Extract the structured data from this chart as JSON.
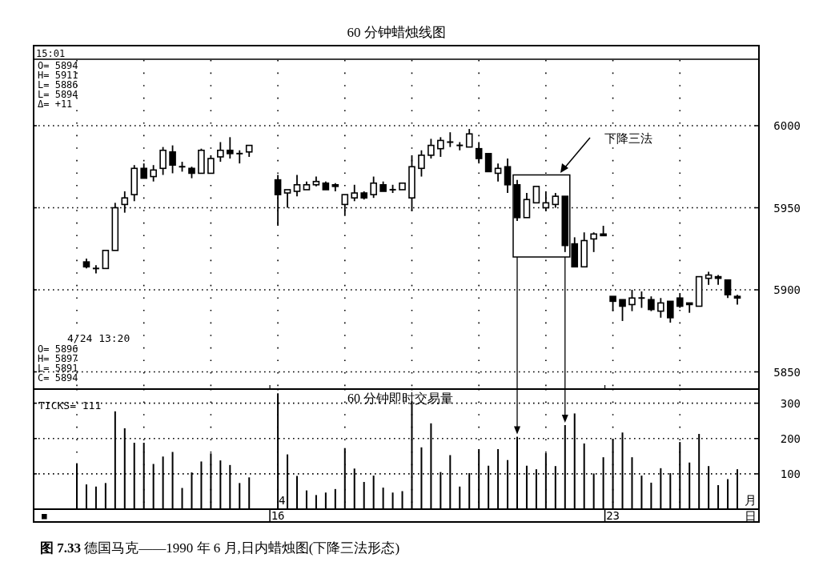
{
  "chart_data": [
    {
      "type": "candlestick",
      "title": "60 分钟蜡烛线图",
      "categories": [
        null,
        null,
        null,
        null,
        null,
        null,
        null,
        null,
        null,
        null,
        null,
        null,
        null,
        null,
        null,
        null,
        null,
        null,
        null,
        null,
        null,
        "16",
        null,
        null,
        null,
        null,
        null,
        null,
        null,
        null,
        null,
        null,
        null,
        null,
        null,
        null,
        null,
        null,
        null,
        null,
        null,
        null,
        null,
        null,
        null,
        null,
        null,
        null,
        null,
        null,
        null,
        null,
        null,
        null,
        null,
        null,
        "23",
        null,
        null,
        null,
        null,
        null,
        null,
        null,
        null,
        null,
        null,
        null,
        null,
        null
      ],
      "ohlc": [
        null,
        [
          5917,
          5919,
          5913,
          5914
        ],
        [
          5913,
          5915,
          5910,
          5913
        ],
        [
          5913,
          5924,
          5913,
          5924
        ],
        [
          5924,
          5953,
          5924,
          5950
        ],
        [
          5952,
          5960,
          5947,
          5956
        ],
        [
          5958,
          5976,
          5954,
          5974
        ],
        [
          5974,
          5977,
          5968,
          5968
        ],
        [
          5969,
          5976,
          5966,
          5973
        ],
        [
          5974,
          5987,
          5970,
          5985
        ],
        [
          5984,
          5988,
          5971,
          5976
        ],
        [
          5975,
          5978,
          5972,
          5975
        ],
        [
          5974,
          5975,
          5968,
          5971
        ],
        [
          5971,
          5986,
          5971,
          5985
        ],
        [
          5971,
          5982,
          5971,
          5980
        ],
        [
          5981,
          5990,
          5978,
          5985
        ],
        [
          5985,
          5993,
          5980,
          5983
        ],
        [
          5983,
          5985,
          5977,
          5983
        ],
        [
          5984,
          5988,
          5981,
          5988
        ],
        null,
        null,
        [
          5967,
          5970,
          5939,
          5958
        ],
        [
          5959,
          5961,
          5950,
          5961
        ],
        [
          5960,
          5970,
          5957,
          5964
        ],
        [
          5961,
          5966,
          5961,
          5964
        ],
        [
          5964,
          5969,
          5963,
          5966
        ],
        [
          5965,
          5966,
          5961,
          5961
        ],
        [
          5964,
          5965,
          5960,
          5963
        ],
        [
          5952,
          5958,
          5945,
          5958
        ],
        [
          5956,
          5964,
          5954,
          5959
        ],
        [
          5959,
          5960,
          5955,
          5956
        ],
        [
          5958,
          5969,
          5956,
          5965
        ],
        [
          5964,
          5966,
          5960,
          5960
        ],
        [
          5961,
          5964,
          5959,
          5961
        ],
        [
          5961,
          5965,
          5961,
          5965
        ],
        [
          5956,
          5982,
          5948,
          5975
        ],
        [
          5974,
          5985,
          5969,
          5982
        ],
        [
          5982,
          5992,
          5980,
          5988
        ],
        [
          5986,
          5993,
          5981,
          5991
        ],
        [
          5990,
          5996,
          5987,
          5990
        ],
        [
          5988,
          5990,
          5985,
          5988
        ],
        [
          5987,
          5998,
          5987,
          5995
        ],
        [
          5986,
          5990,
          5977,
          5980
        ],
        [
          5983,
          5983,
          5972,
          5972
        ],
        [
          5971,
          5977,
          5966,
          5974
        ],
        [
          5975,
          5980,
          5959,
          5964
        ],
        [
          5964,
          5967,
          5942,
          5944
        ],
        [
          5944,
          5959,
          5944,
          5955
        ],
        [
          5953,
          5963,
          5953,
          5963
        ],
        [
          5950,
          5960,
          5948,
          5953
        ],
        [
          5952,
          5959,
          5950,
          5957
        ],
        [
          5957,
          5957,
          5923,
          5927
        ],
        [
          5928,
          5932,
          5914,
          5914
        ],
        [
          5914,
          5935,
          5914,
          5930
        ],
        [
          5931,
          5935,
          5923,
          5934
        ],
        [
          5934,
          5939,
          5933,
          5933
        ],
        [
          5896,
          5896,
          5887,
          5893
        ],
        [
          5894,
          5894,
          5881,
          5890
        ],
        [
          5891,
          5900,
          5887,
          5895
        ],
        [
          5895,
          5899,
          5889,
          5895
        ],
        [
          5894,
          5896,
          5887,
          5888
        ],
        [
          5887,
          5895,
          5883,
          5892
        ],
        [
          5893,
          5893,
          5880,
          5883
        ],
        [
          5895,
          5898,
          5889,
          5890
        ],
        [
          5892,
          5892,
          5886,
          5891
        ],
        [
          5890,
          5908,
          5890,
          5908
        ],
        [
          5907,
          5911,
          5903,
          5909
        ],
        [
          5908,
          5909,
          5903,
          5907
        ],
        [
          5906,
          5906,
          5895,
          5897
        ],
        [
          5896,
          5897,
          5891,
          5895
        ]
      ],
      "color": "#000000",
      "ylim": [
        5840,
        6040
      ],
      "yticks": [
        5850,
        5900,
        5950,
        6000
      ],
      "grid": true,
      "tick_labels": "y",
      "annotations": [
        "15:01",
        "O= 5894",
        "H= 5911",
        "L= 5886",
        "L= 5894",
        "Δ=  +11",
        "4/24 13:20",
        "O= 5896",
        "H= 5897",
        "L= 5891",
        "C= 5894",
        "下降三法"
      ]
    },
    {
      "type": "bar",
      "title": "60 分钟即时交易量",
      "categories": [
        null,
        null,
        null,
        null,
        null,
        null,
        null,
        null,
        null,
        null,
        null,
        null,
        null,
        null,
        null,
        null,
        null,
        null,
        null,
        null,
        null,
        "16",
        null,
        null,
        null,
        null,
        null,
        null,
        null,
        null,
        null,
        null,
        null,
        null,
        null,
        null,
        null,
        null,
        null,
        null,
        null,
        null,
        null,
        null,
        null,
        null,
        null,
        null,
        null,
        null,
        null,
        null,
        null,
        null,
        null,
        null,
        "23",
        null,
        null,
        null,
        null,
        null,
        null,
        null,
        null,
        null,
        null,
        null,
        null,
        null
      ],
      "values": [
        130,
        70,
        64,
        74,
        277,
        229,
        188,
        188,
        128,
        149,
        162,
        60,
        104,
        135,
        158,
        138,
        125,
        74,
        90,
        null,
        null,
        328,
        155,
        94,
        53,
        40,
        47,
        57,
        173,
        115,
        77,
        95,
        61,
        47,
        51,
        305,
        175,
        243,
        105,
        153,
        64,
        102,
        170,
        123,
        170,
        139,
        205,
        123,
        113,
        159,
        122,
        238,
        271,
        186,
        101,
        147,
        199,
        217,
        147,
        95,
        75,
        116,
        102,
        190,
        132,
        213,
        122,
        68,
        85,
        113
      ],
      "color": "#000000",
      "ylim": [
        0,
        340
      ],
      "yticks": [
        100,
        200,
        300
      ],
      "grid": true,
      "annotations": [
        "TICKS=  111",
        "4",
        "■",
        "月",
        "日",
        "**图 7.33**  德国马克——1990 年 6 月,日内蜡烛图(下降三法形态)"
      ]
    }
  ]
}
